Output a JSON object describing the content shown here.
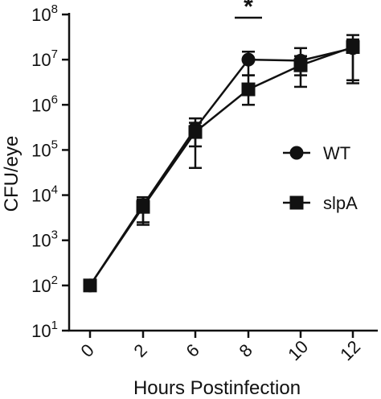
{
  "chart_data": {
    "type": "line",
    "xlabel": "Hours Postinfection",
    "ylabel": "CFU/eye",
    "categories": [
      "0",
      "2",
      "6",
      "8",
      "10",
      "12"
    ],
    "y_scale": "log10",
    "ylim": [
      10,
      100000000
    ],
    "y_ticks": [
      {
        "value": 10,
        "base": "10",
        "exp": "1"
      },
      {
        "value": 100,
        "base": "10",
        "exp": "2"
      },
      {
        "value": 1000,
        "base": "10",
        "exp": "3"
      },
      {
        "value": 10000,
        "base": "10",
        "exp": "4"
      },
      {
        "value": 100000,
        "base": "10",
        "exp": "5"
      },
      {
        "value": 1000000,
        "base": "10",
        "exp": "6"
      },
      {
        "value": 10000000,
        "base": "10",
        "exp": "7"
      },
      {
        "value": 100000000,
        "base": "10",
        "exp": "8"
      }
    ],
    "grid": false,
    "legend_position": "right",
    "series": [
      {
        "name": "WT",
        "marker": "circle",
        "values": [
          100,
          6000,
          300000,
          10000000,
          9500000,
          18000000
        ],
        "error_low": [
          100,
          2500,
          120000,
          4500000,
          4500000,
          3500000
        ],
        "error_high": [
          100,
          9000,
          500000,
          15000000,
          18000000,
          35000000
        ]
      },
      {
        "name": "slpA",
        "marker": "square",
        "values": [
          100,
          5500,
          250000,
          2200000,
          7500000,
          19000000
        ],
        "error_low": [
          100,
          2200,
          40000,
          1000000,
          2500000,
          3000000
        ],
        "error_high": [
          100,
          8000,
          400000,
          4500000,
          12000000,
          28000000
        ]
      }
    ],
    "annotations": [
      {
        "text": "*",
        "between": [
          "8"
        ],
        "meaning": "significance marker"
      }
    ]
  }
}
